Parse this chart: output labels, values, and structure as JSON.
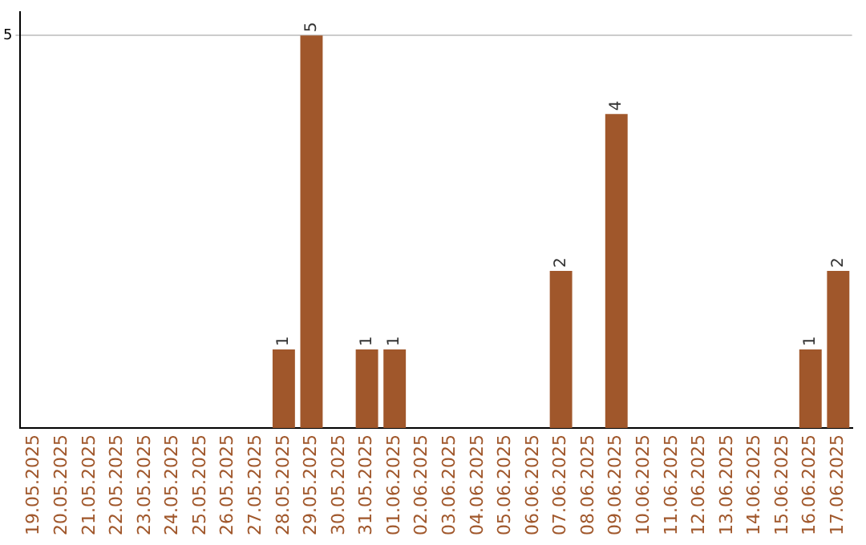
{
  "chart_data": {
    "type": "bar",
    "categories": [
      "19.05.2025",
      "20.05.2025",
      "21.05.2025",
      "22.05.2025",
      "23.05.2025",
      "24.05.2025",
      "25.05.2025",
      "26.05.2025",
      "27.05.2025",
      "28.05.2025",
      "29.05.2025",
      "30.05.2025",
      "31.05.2025",
      "01.06.2025",
      "02.06.2025",
      "03.06.2025",
      "04.06.2025",
      "05.06.2025",
      "06.06.2025",
      "07.06.2025",
      "08.06.2025",
      "09.06.2025",
      "10.06.2025",
      "11.06.2025",
      "12.06.2025",
      "13.06.2025",
      "14.06.2025",
      "15.06.2025",
      "16.06.2025",
      "17.06.2025"
    ],
    "values": [
      0,
      0,
      0,
      0,
      0,
      0,
      0,
      0,
      0,
      1,
      5,
      0,
      1,
      1,
      0,
      0,
      0,
      0,
      0,
      2,
      0,
      4,
      0,
      0,
      0,
      0,
      0,
      0,
      1,
      2
    ],
    "value_labels": [
      null,
      null,
      null,
      null,
      null,
      null,
      null,
      null,
      null,
      "1",
      "5",
      null,
      "1",
      "1",
      null,
      null,
      null,
      null,
      null,
      "2",
      null,
      "4",
      null,
      null,
      null,
      null,
      null,
      null,
      "1",
      "2"
    ],
    "color": "#a0572b",
    "ylim": [
      0,
      5.3
    ],
    "yticks": [
      5
    ],
    "grid": "y",
    "legend": false
  }
}
